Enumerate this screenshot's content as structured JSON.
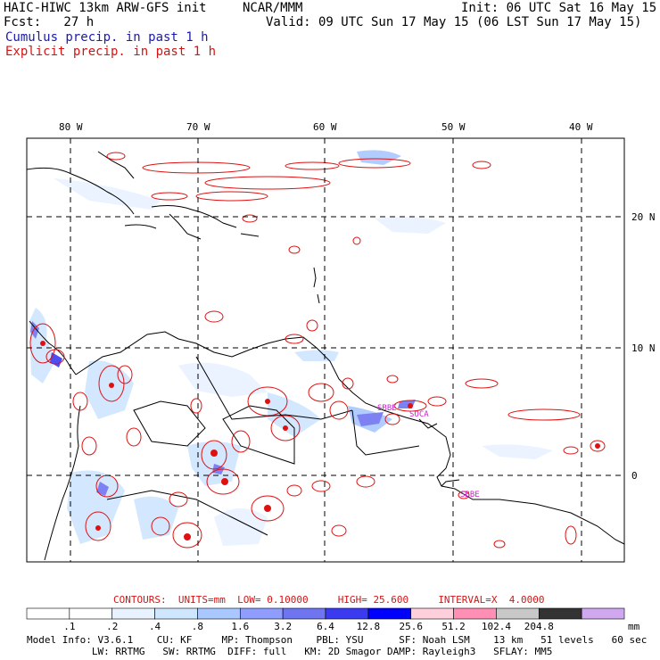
{
  "header": {
    "model_line": "HAIC-HIWC 13km ARW-GFS init",
    "org": "NCAR/MMM",
    "init": "Init: 06 UTC Sat 16 May 15",
    "fcst": "Fcst:   27 h",
    "valid": "Valid: 09 UTC Sun 17 May 15 (06 LST Sun 17 May 15)",
    "cumulus_label": "Cumulus precip. in past 1 h",
    "explicit_label": "Explicit precip. in past 1 h"
  },
  "map": {
    "lon_labels": [
      "80 W",
      "70 W",
      "60 W",
      "50 W",
      "40 W"
    ],
    "lat_labels": [
      "20 N",
      "10 N",
      "0"
    ],
    "stations": [
      "SBBE",
      "SOCA",
      "SBBE"
    ],
    "colors": {
      "explicit_contour": "#e01010",
      "cumulus_fill": "#6f74f0",
      "coast": "#000000"
    }
  },
  "contours": {
    "label": "CONTOURS:",
    "units": "UNITS=mm",
    "low": "LOW= 0.10000",
    "high": "HIGH= 25.600",
    "interval": "INTERVAL=X  4.0000"
  },
  "colorbar": {
    "units": "mm",
    "labels": [
      ".1",
      ".2",
      ".4",
      ".8",
      "1.6",
      "3.2",
      "6.4",
      "12.8",
      "25.6",
      "51.2",
      "102.4",
      "204.8"
    ],
    "colors": [
      "#ffffff",
      "#ffffff",
      "#e8f2ff",
      "#cfe6ff",
      "#a9c8ff",
      "#8f9dff",
      "#6f74f0",
      "#3a3af0",
      "#0000ff",
      "#ffd0dc",
      "#ff8fb4",
      "#c8c8c8",
      "#333333",
      "#d0a8f0"
    ]
  },
  "model_info": {
    "line1": "Model Info: V3.6.1    CU: KF     MP: Thompson    PBL: YSU      SF: Noah LSM    13 km   51 levels   60 sec",
    "line2": "           LW: RRTMG   SW: RRTMG  DIFF: full   KM: 2D Smagor DAMP: Rayleigh3   SFLAY: MM5"
  }
}
